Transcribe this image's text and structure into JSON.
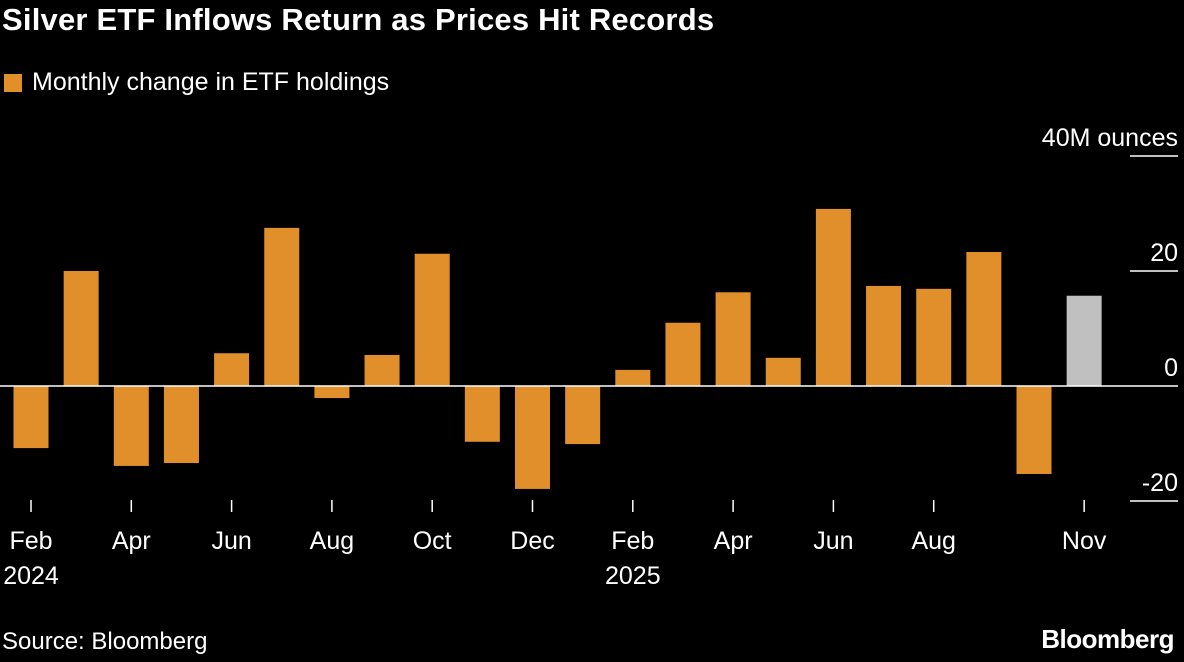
{
  "title": "Silver ETF Inflows Return as Prices Hit Records",
  "source": "Source: Bloomberg",
  "logo": "Bloomberg",
  "colors": {
    "bar": "#e08f2a",
    "latest_bar": "#c0c0c0",
    "background": "#000000"
  },
  "chart_data": {
    "type": "bar",
    "title": "Silver ETF Inflows Return as Prices Hit Records",
    "legend": [
      {
        "name": "Monthly change in ETF holdings",
        "color": "#e08f2a"
      }
    ],
    "legend_placement": "top-left",
    "ylabel": "",
    "y_unit_label": "40M ounces",
    "ylim": [
      -25,
      40
    ],
    "y_ticks": [
      {
        "value": 40,
        "label": "40M ounces"
      },
      {
        "value": 20,
        "label": "20"
      },
      {
        "value": 0,
        "label": "0"
      },
      {
        "value": -20,
        "label": "-20"
      }
    ],
    "y_axis_side": "right",
    "grid": false,
    "categories": [
      "Feb 2024",
      "Mar 2024",
      "Apr 2024",
      "May 2024",
      "Jun 2024",
      "Jul 2024",
      "Aug 2024",
      "Sep 2024",
      "Oct 2024",
      "Nov 2024",
      "Dec 2024",
      "Jan 2025",
      "Feb 2025",
      "Mar 2025",
      "Apr 2025",
      "May 2025",
      "Jun 2025",
      "Jul 2025",
      "Aug 2025",
      "Sep 2025",
      "Oct 2025",
      "Nov 2025"
    ],
    "x_ticks": [
      {
        "index": 0,
        "label": "Feb",
        "year": "2024"
      },
      {
        "index": 2,
        "label": "Apr"
      },
      {
        "index": 4,
        "label": "Jun"
      },
      {
        "index": 6,
        "label": "Aug"
      },
      {
        "index": 8,
        "label": "Oct"
      },
      {
        "index": 10,
        "label": "Dec"
      },
      {
        "index": 12,
        "label": "Feb",
        "year": "2025"
      },
      {
        "index": 14,
        "label": "Apr"
      },
      {
        "index": 16,
        "label": "Jun"
      },
      {
        "index": 18,
        "label": "Aug"
      },
      {
        "index": 21,
        "label": "Nov"
      }
    ],
    "series": [
      {
        "name": "Monthly change in ETF holdings",
        "values": [
          -10.8,
          20.0,
          -13.9,
          -13.4,
          5.7,
          27.5,
          -2.1,
          5.4,
          23.0,
          -9.7,
          -17.9,
          -10.1,
          2.8,
          11.0,
          16.3,
          4.9,
          30.8,
          17.4,
          16.9,
          23.3,
          -15.3,
          15.7
        ],
        "highlight_last": true
      }
    ]
  }
}
